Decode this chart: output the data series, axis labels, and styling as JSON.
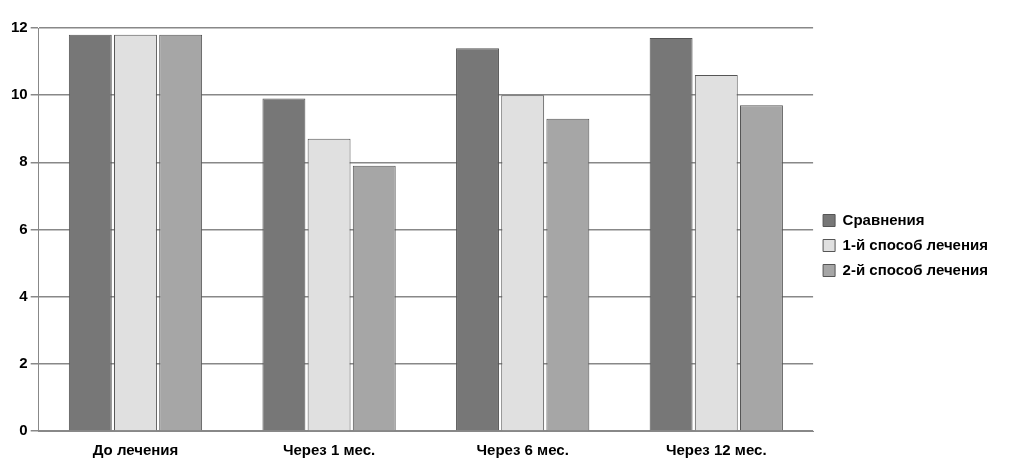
{
  "chart_data": {
    "type": "bar",
    "categories": [
      "До лечения",
      "Через 1 мес.",
      "Через 6 мес.",
      "Через 12 мес."
    ],
    "series": [
      {
        "name": "Сравнения",
        "color": "#777777",
        "values": [
          11.8,
          9.9,
          11.4,
          11.7
        ]
      },
      {
        "name": "1-й способ лечения",
        "color": "#e0e0e0",
        "values": [
          11.8,
          8.7,
          10.0,
          10.6
        ]
      },
      {
        "name": "2-й способ лечения",
        "color": "#a6a6a6",
        "values": [
          11.8,
          7.9,
          9.3,
          9.7
        ]
      }
    ],
    "ylim": [
      0,
      12
    ],
    "yticks": [
      0,
      2,
      4,
      6,
      8,
      10,
      12
    ],
    "grid": "y",
    "legend": "right"
  }
}
